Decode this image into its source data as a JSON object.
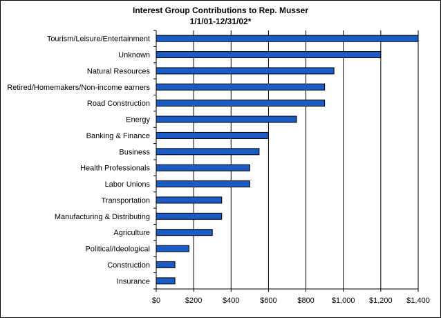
{
  "chart_data": {
    "type": "bar",
    "orientation": "horizontal",
    "title": "Interest Group Contributions to Rep. Musser",
    "subtitle": "1/1/01-12/31/02*",
    "categories": [
      "Tourism/Leisure/Entertainment",
      "Unknown",
      "Natural Resources",
      "Retired/Homemakers/Non-income earners",
      "Road Construction",
      "Energy",
      "Banking & Finance",
      "Business",
      "Health Professionals",
      "Labor Unions",
      "Transportation",
      "Manufacturing & Distributing",
      "Agriculture",
      "Political/Ideological",
      "Construction",
      "Insurance"
    ],
    "values": [
      1400,
      1200,
      950,
      900,
      900,
      750,
      600,
      550,
      500,
      500,
      350,
      350,
      300,
      175,
      100,
      100
    ],
    "xlim": [
      0,
      1400
    ],
    "x_ticks": [
      0,
      200,
      400,
      600,
      800,
      1000,
      1200,
      1400
    ],
    "x_tick_labels": [
      "$0",
      "$200",
      "$400",
      "$600",
      "$800",
      "$1,000",
      "$1,200",
      "$1,400"
    ],
    "xlabel": "",
    "ylabel": "",
    "grid": "vertical",
    "legend": "none",
    "colors": {
      "bar": "#1a5bc4",
      "bar_outline": "#000000",
      "grid": "#000000",
      "background": "#ffffff"
    }
  }
}
